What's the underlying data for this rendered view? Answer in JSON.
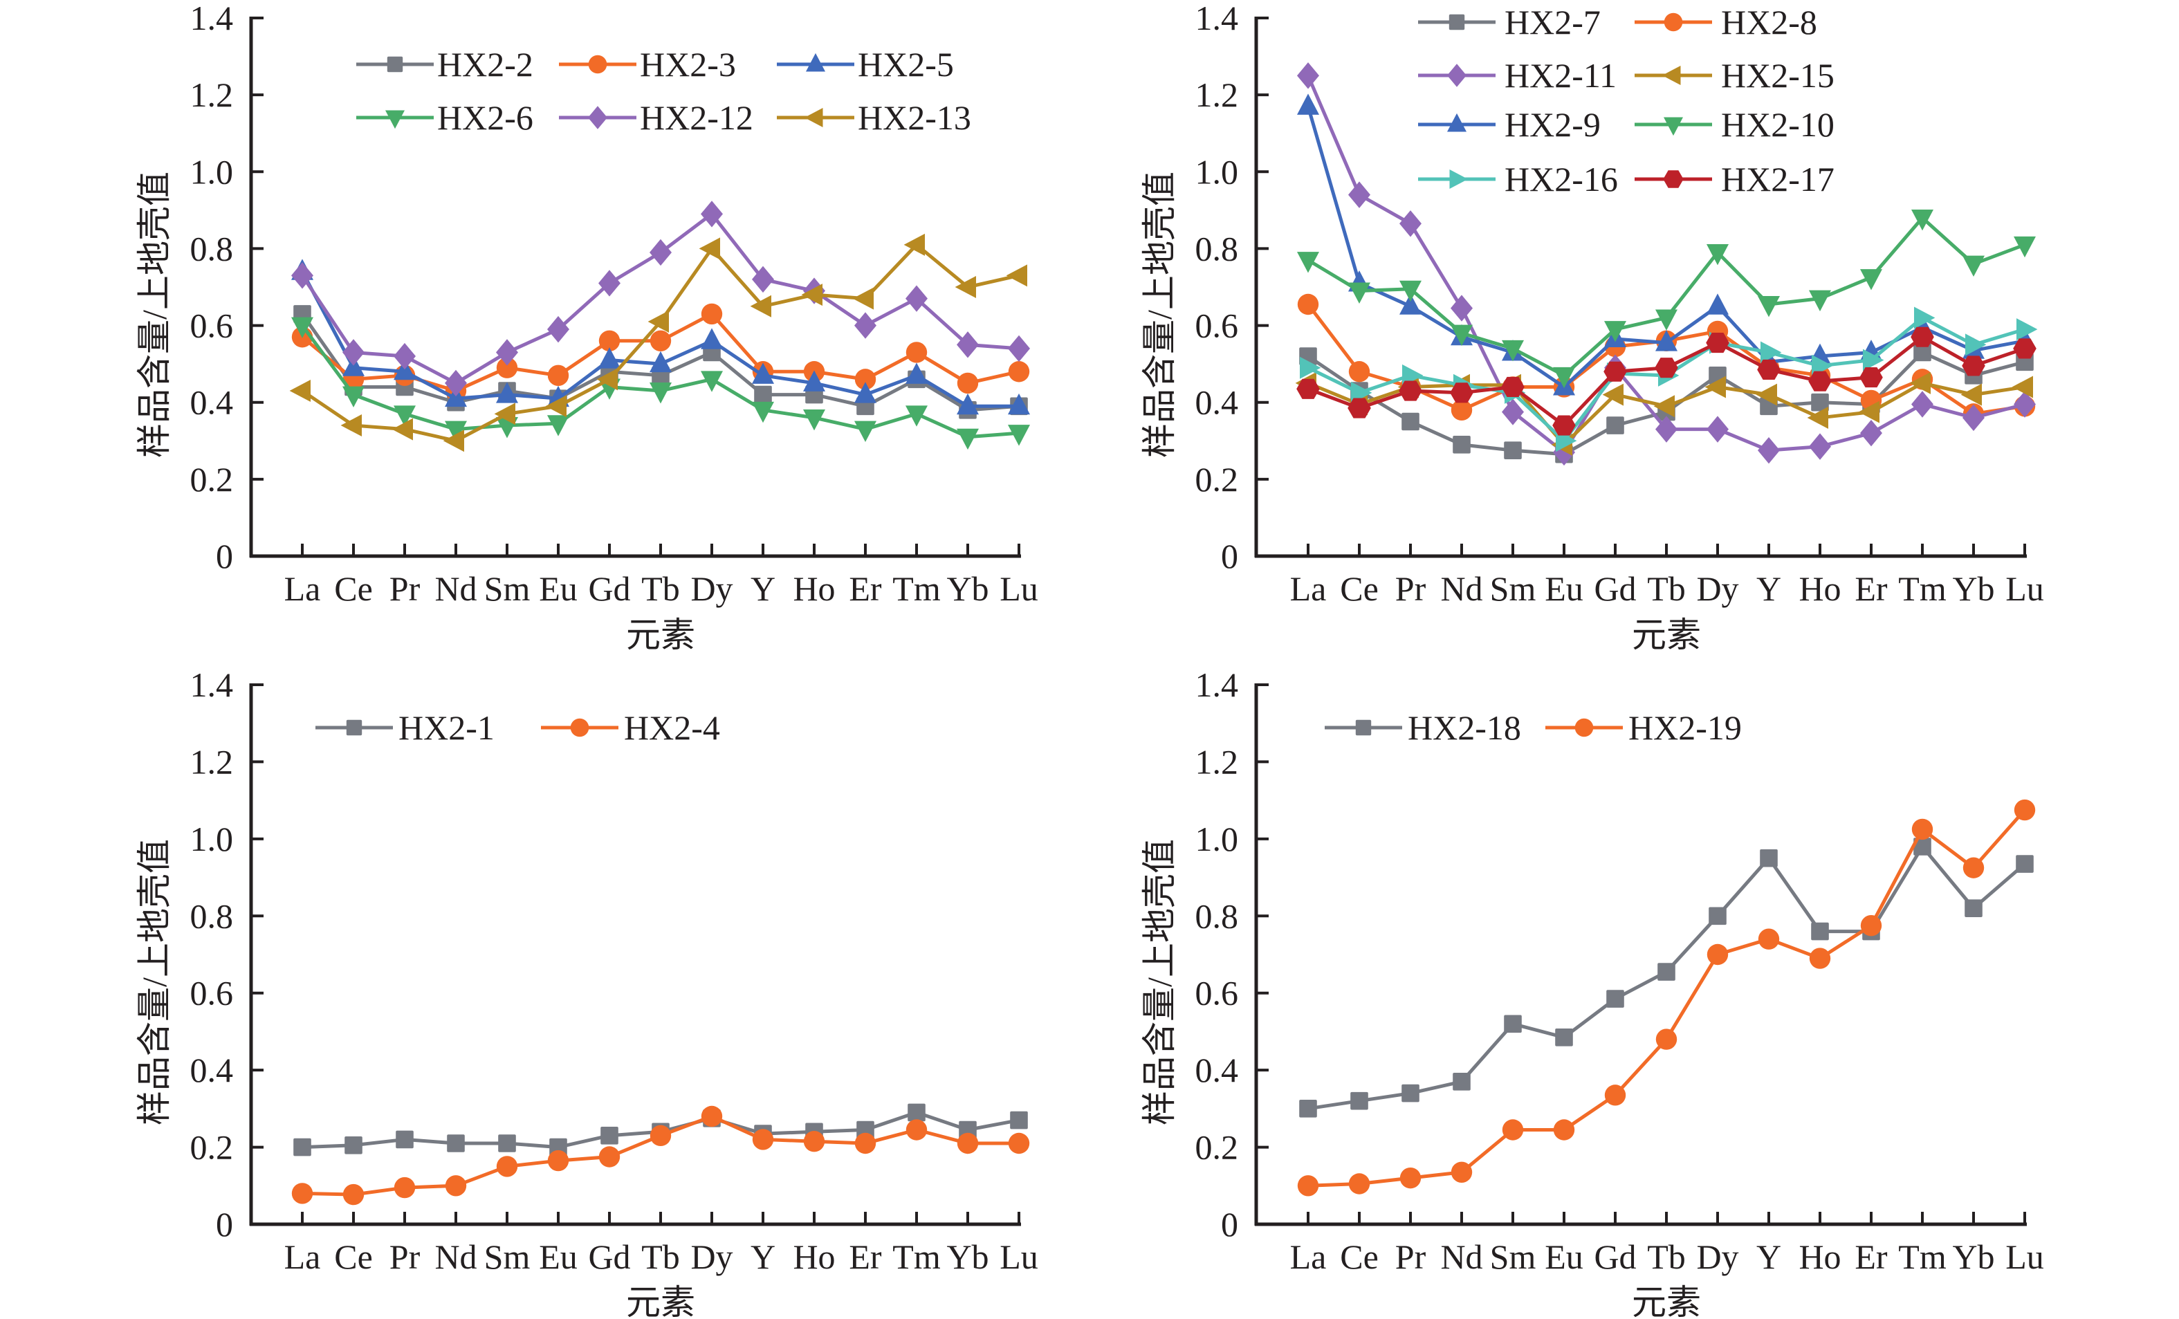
{
  "figure": {
    "shared_categories": [
      "La",
      "Ce",
      "Pr",
      "Nd",
      "Sm",
      "Eu",
      "Gd",
      "Tb",
      "Dy",
      "Y",
      "Ho",
      "Er",
      "Tm",
      "Yb",
      "Lu"
    ]
  },
  "chart_data": [
    {
      "id": "top-left",
      "type": "line",
      "title": "",
      "xlabel": "元素",
      "ylabel": "样品含量/上地壳值",
      "categories": [
        "La",
        "Ce",
        "Pr",
        "Nd",
        "Sm",
        "Eu",
        "Gd",
        "Tb",
        "Dy",
        "Y",
        "Ho",
        "Er",
        "Tm",
        "Yb",
        "Lu"
      ],
      "ylim": [
        0,
        1.4
      ],
      "yticks": [
        "0",
        "0.2",
        "0.4",
        "0.6",
        "0.8",
        "1.0",
        "1.2",
        "1.4"
      ],
      "ytick_values": [
        0,
        0.2,
        0.4,
        0.6,
        0.8,
        1.0,
        1.2,
        1.4
      ],
      "grid": false,
      "legend_position": "top",
      "series": [
        {
          "name": "HX2-2",
          "color": "#767a82",
          "marker": "square",
          "values": [
            0.63,
            0.44,
            0.44,
            0.4,
            0.43,
            0.41,
            0.48,
            0.47,
            0.53,
            0.42,
            0.42,
            0.39,
            0.46,
            0.38,
            0.39
          ]
        },
        {
          "name": "HX2-3",
          "color": "#f26b27",
          "marker": "circle",
          "values": [
            0.57,
            0.46,
            0.47,
            0.43,
            0.49,
            0.47,
            0.56,
            0.56,
            0.63,
            0.48,
            0.48,
            0.46,
            0.53,
            0.45,
            0.48
          ]
        },
        {
          "name": "HX2-5",
          "color": "#3f6abc",
          "marker": "triangle-up",
          "values": [
            0.74,
            0.49,
            0.48,
            0.41,
            0.42,
            0.41,
            0.51,
            0.5,
            0.56,
            0.47,
            0.45,
            0.42,
            0.47,
            0.39,
            0.39
          ]
        },
        {
          "name": "HX2-6",
          "color": "#47ac68",
          "marker": "triangle-down",
          "values": [
            0.6,
            0.42,
            0.37,
            0.33,
            0.34,
            0.345,
            0.44,
            0.43,
            0.46,
            0.38,
            0.36,
            0.33,
            0.37,
            0.31,
            0.32
          ]
        },
        {
          "name": "HX2-12",
          "color": "#9069b8",
          "marker": "diamond",
          "values": [
            0.73,
            0.53,
            0.52,
            0.45,
            0.53,
            0.59,
            0.71,
            0.79,
            0.89,
            0.72,
            0.69,
            0.6,
            0.67,
            0.55,
            0.54
          ]
        },
        {
          "name": "HX2-13",
          "color": "#b88a22",
          "marker": "triangle-left",
          "values": [
            0.43,
            0.34,
            0.33,
            0.3,
            0.37,
            0.39,
            0.46,
            0.61,
            0.8,
            0.65,
            0.68,
            0.67,
            0.81,
            0.7,
            0.73
          ]
        }
      ]
    },
    {
      "id": "top-right",
      "type": "line",
      "title": "",
      "xlabel": "元素",
      "ylabel": "样品含量/上地壳值",
      "categories": [
        "La",
        "Ce",
        "Pr",
        "Nd",
        "Sm",
        "Eu",
        "Gd",
        "Tb",
        "Dy",
        "Y",
        "Ho",
        "Er",
        "Tm",
        "Yb",
        "Lu"
      ],
      "ylim": [
        0,
        1.4
      ],
      "yticks": [
        "0",
        "0.2",
        "0.4",
        "0.6",
        "0.8",
        "1.0",
        "1.2",
        "1.4"
      ],
      "ytick_values": [
        0,
        0.2,
        0.4,
        0.6,
        0.8,
        1.0,
        1.2,
        1.4
      ],
      "grid": false,
      "legend_position": "top",
      "series": [
        {
          "name": "HX2-7",
          "color": "#767a82",
          "marker": "square",
          "values": [
            0.52,
            0.43,
            0.35,
            0.29,
            0.275,
            0.265,
            0.34,
            0.375,
            0.47,
            0.39,
            0.4,
            0.395,
            0.53,
            0.47,
            0.505
          ]
        },
        {
          "name": "HX2-8",
          "color": "#f26b27",
          "marker": "circle",
          "values": [
            0.655,
            0.48,
            0.44,
            0.38,
            0.44,
            0.44,
            0.545,
            0.56,
            0.585,
            0.49,
            0.47,
            0.405,
            0.46,
            0.37,
            0.39
          ]
        },
        {
          "name": "HX2-11",
          "color": "#9069b8",
          "marker": "diamond",
          "values": [
            1.25,
            0.94,
            0.865,
            0.645,
            0.375,
            0.27,
            0.49,
            0.33,
            0.33,
            0.275,
            0.285,
            0.32,
            0.395,
            0.36,
            0.395
          ]
        },
        {
          "name": "HX2-15",
          "color": "#b88a22",
          "marker": "triangle-left",
          "values": [
            0.45,
            0.395,
            0.44,
            0.445,
            0.445,
            0.29,
            0.42,
            0.39,
            0.44,
            0.42,
            0.36,
            0.375,
            0.45,
            0.42,
            0.44
          ]
        },
        {
          "name": "HX2-9",
          "color": "#3f6abc",
          "marker": "triangle-up",
          "values": [
            1.17,
            0.71,
            0.65,
            0.57,
            0.53,
            0.44,
            0.565,
            0.555,
            0.65,
            0.505,
            0.52,
            0.53,
            0.595,
            0.535,
            0.56
          ]
        },
        {
          "name": "HX2-10",
          "color": "#47ac68",
          "marker": "triangle-down",
          "values": [
            0.77,
            0.69,
            0.695,
            0.58,
            0.54,
            0.47,
            0.59,
            0.62,
            0.79,
            0.655,
            0.67,
            0.725,
            0.88,
            0.76,
            0.81
          ]
        },
        {
          "name": "HX2-16",
          "color": "#52c3b8",
          "marker": "triangle-right",
          "values": [
            0.49,
            0.425,
            0.47,
            0.445,
            0.425,
            0.3,
            0.475,
            0.47,
            0.555,
            0.53,
            0.495,
            0.51,
            0.62,
            0.55,
            0.59
          ]
        },
        {
          "name": "HX2-17",
          "color": "#bd2129",
          "marker": "hexagon",
          "values": [
            0.435,
            0.385,
            0.43,
            0.425,
            0.44,
            0.34,
            0.48,
            0.49,
            0.555,
            0.485,
            0.455,
            0.465,
            0.57,
            0.495,
            0.54
          ]
        }
      ]
    },
    {
      "id": "bottom-left",
      "type": "line",
      "title": "",
      "xlabel": "元素",
      "ylabel": "样品含量/上地壳值",
      "categories": [
        "La",
        "Ce",
        "Pr",
        "Nd",
        "Sm",
        "Eu",
        "Gd",
        "Tb",
        "Dy",
        "Y",
        "Ho",
        "Er",
        "Tm",
        "Yb",
        "Lu"
      ],
      "ylim": [
        0,
        1.4
      ],
      "yticks": [
        "0",
        "0.2",
        "0.4",
        "0.6",
        "0.8",
        "1.0",
        "1.2",
        "1.4"
      ],
      "ytick_values": [
        0,
        0.2,
        0.4,
        0.6,
        0.8,
        1.0,
        1.2,
        1.4
      ],
      "grid": false,
      "legend_position": "top",
      "series": [
        {
          "name": "HX2-1",
          "color": "#767a82",
          "marker": "square",
          "values": [
            0.2,
            0.205,
            0.22,
            0.21,
            0.21,
            0.2,
            0.23,
            0.24,
            0.275,
            0.235,
            0.24,
            0.245,
            0.29,
            0.245,
            0.27
          ]
        },
        {
          "name": "HX2-4",
          "color": "#f26b27",
          "marker": "circle",
          "values": [
            0.08,
            0.077,
            0.095,
            0.1,
            0.15,
            0.165,
            0.175,
            0.23,
            0.28,
            0.22,
            0.215,
            0.21,
            0.245,
            0.21,
            0.21
          ]
        }
      ]
    },
    {
      "id": "bottom-right",
      "type": "line",
      "title": "",
      "xlabel": "元素",
      "ylabel": "样品含量/上地壳值",
      "categories": [
        "La",
        "Ce",
        "Pr",
        "Nd",
        "Sm",
        "Eu",
        "Gd",
        "Tb",
        "Dy",
        "Y",
        "Ho",
        "Er",
        "Tm",
        "Yb",
        "Lu"
      ],
      "ylim": [
        0,
        1.4
      ],
      "yticks": [
        "0",
        "0.2",
        "0.4",
        "0.6",
        "0.8",
        "1.0",
        "1.2",
        "1.4"
      ],
      "ytick_values": [
        0,
        0.2,
        0.4,
        0.6,
        0.8,
        1.0,
        1.2,
        1.4
      ],
      "grid": false,
      "legend_position": "top",
      "series": [
        {
          "name": "HX2-18",
          "color": "#767a82",
          "marker": "square",
          "values": [
            0.3,
            0.32,
            0.34,
            0.37,
            0.52,
            0.485,
            0.585,
            0.655,
            0.8,
            0.95,
            0.76,
            0.76,
            0.98,
            0.82,
            0.935
          ]
        },
        {
          "name": "HX2-19",
          "color": "#f26b27",
          "marker": "circle",
          "values": [
            0.1,
            0.105,
            0.12,
            0.135,
            0.245,
            0.245,
            0.335,
            0.48,
            0.7,
            0.74,
            0.69,
            0.775,
            1.025,
            0.925,
            1.075
          ]
        }
      ]
    }
  ]
}
